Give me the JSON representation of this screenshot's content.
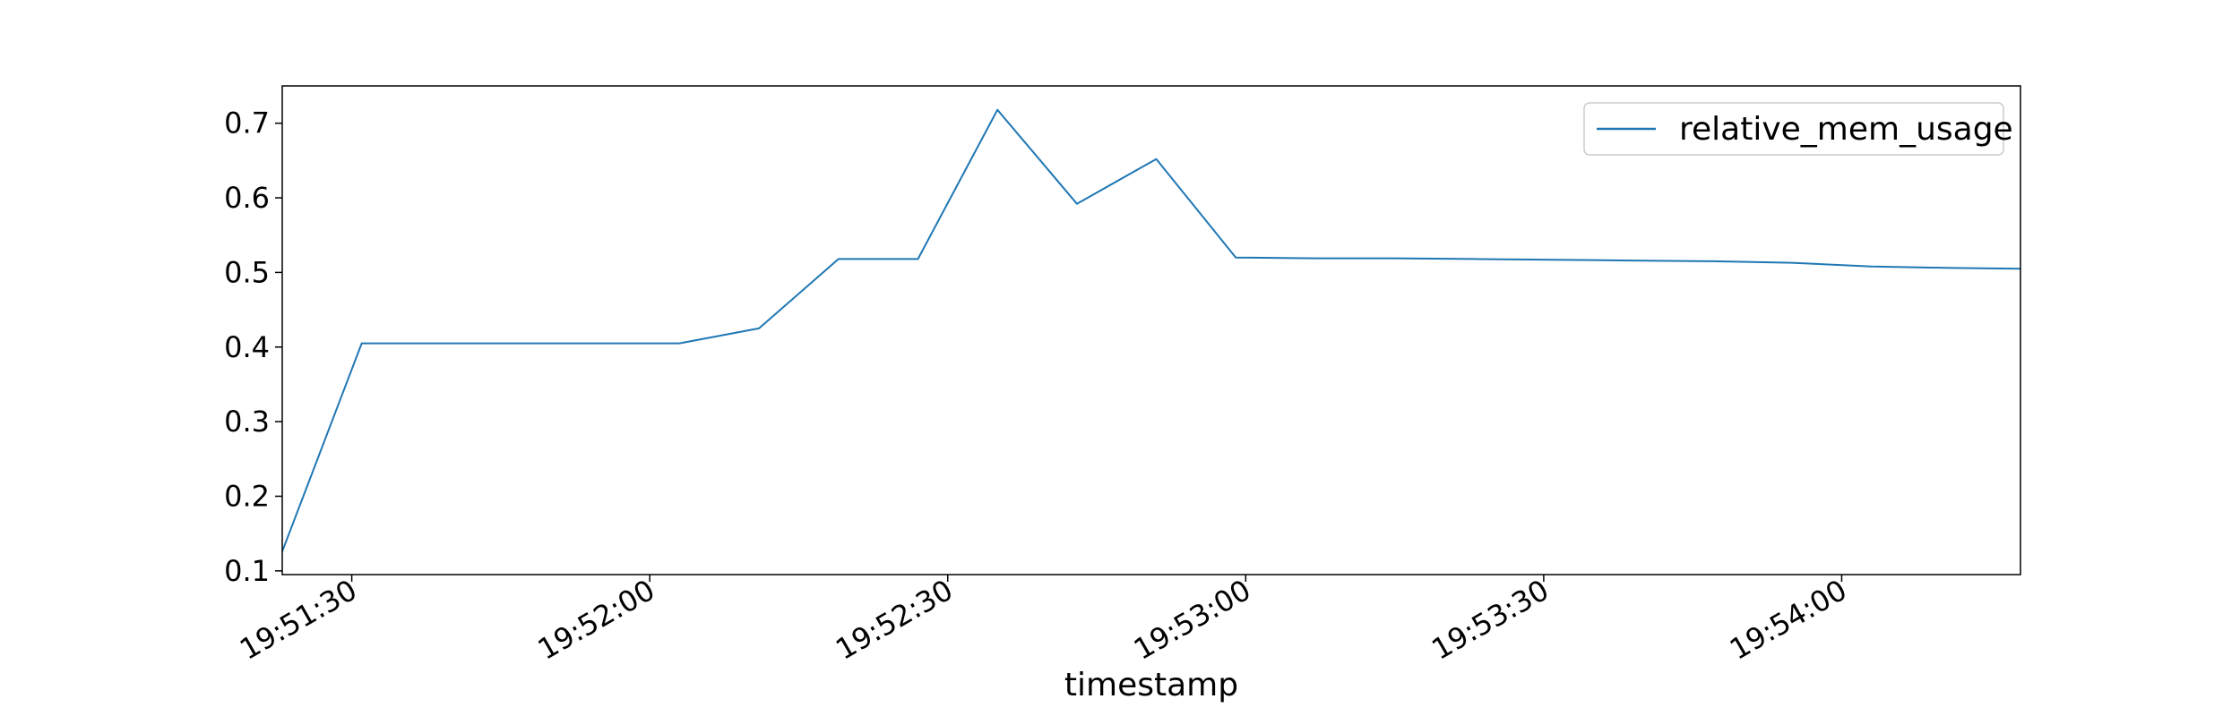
{
  "chart_data": {
    "type": "line",
    "title": "",
    "xlabel": "timestamp",
    "ylabel": "",
    "x_ticks": [
      "19:51:30",
      "19:52:00",
      "19:52:30",
      "19:53:00",
      "19:53:30",
      "19:54:00"
    ],
    "y_ticks": [
      "0.1",
      "0.2",
      "0.3",
      "0.4",
      "0.5",
      "0.6",
      "0.7"
    ],
    "xlim": [
      "19:51:23",
      "19:54:18"
    ],
    "ylim": [
      0.095,
      0.75
    ],
    "grid": false,
    "legend_position": "top-right",
    "colors": {
      "series": "#1f77b4",
      "axes": "#000000",
      "background": "#ffffff"
    },
    "series": [
      {
        "name": "relative_mem_usage",
        "x": [
          "19:51:23",
          "19:51:31",
          "19:51:39",
          "19:51:47",
          "19:51:55",
          "19:52:03",
          "19:52:11",
          "19:52:19",
          "19:52:27",
          "19:52:35",
          "19:52:43",
          "19:52:51",
          "19:52:59",
          "19:53:07",
          "19:53:15",
          "19:53:23",
          "19:53:31",
          "19:53:39",
          "19:53:47",
          "19:53:55",
          "19:54:03",
          "19:54:11",
          "19:54:18"
        ],
        "values": [
          0.126,
          0.405,
          0.405,
          0.405,
          0.405,
          0.405,
          0.425,
          0.518,
          0.518,
          0.718,
          0.592,
          0.652,
          0.52,
          0.519,
          0.519,
          0.518,
          0.517,
          0.516,
          0.515,
          0.513,
          0.508,
          0.506,
          0.505
        ]
      }
    ]
  }
}
